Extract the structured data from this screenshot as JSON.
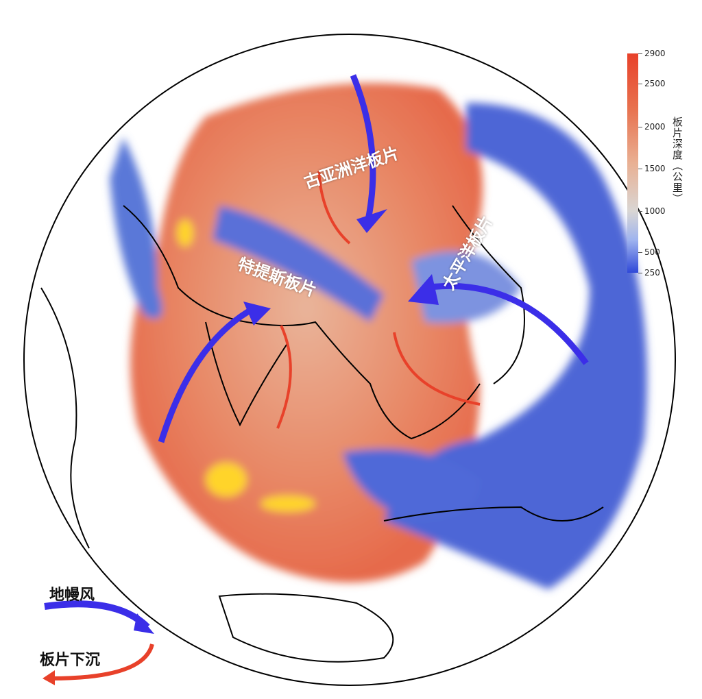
{
  "labels": {
    "paleo_asian": "古亚洲洋板片",
    "tethys": "特提斯板片",
    "pacific": "太平洋板片"
  },
  "colorbar": {
    "title": "板片深度（公里）",
    "ticks": [
      "2900",
      "2500",
      "2000",
      "1500",
      "1000",
      "500",
      "250"
    ],
    "range": [
      250,
      2900
    ],
    "colors": {
      "deep": "#e8412a",
      "mid": "#d9d6d4",
      "shallow": "#2f48d8"
    }
  },
  "legend": {
    "mantle_wind": "地幔风",
    "slab_sinking": "板片下沉",
    "mantle_wind_color": "#3b2ee8",
    "slab_sinking_color": "#e8412a"
  }
}
